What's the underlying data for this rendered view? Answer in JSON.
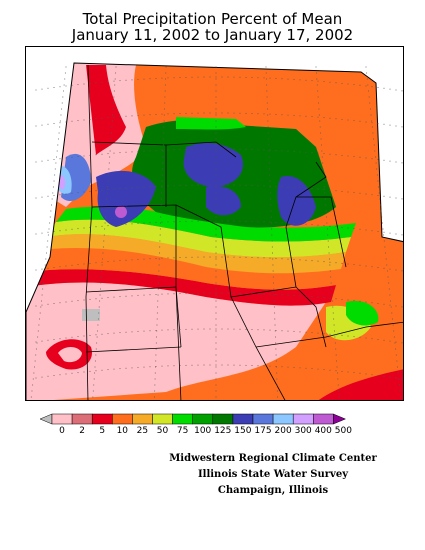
{
  "title_line1": "Total Precipitation Percent of Mean",
  "title_line2": "January 11, 2002 to January 17, 2002",
  "legend": {
    "labels": [
      "0",
      "2",
      "5",
      "10",
      "25",
      "50",
      "75",
      "100",
      "125",
      "150",
      "175",
      "200",
      "300",
      "400",
      "500"
    ],
    "colors": [
      "#bebebe",
      "#ffc0c8",
      "#dc6e78",
      "#e6001e",
      "#ff6e1e",
      "#f5aa28",
      "#d2e628",
      "#00dc00",
      "#00a000",
      "#007800",
      "#3c3cb4",
      "#5a78dc",
      "#8cc8ff",
      "#d2a0ff",
      "#be5ad2",
      "#8c0096"
    ]
  },
  "credits": {
    "line1": "Midwestern Regional Climate Center",
    "line2": "Illinois State Water Survey",
    "line3": "Champaign, Illinois"
  }
}
